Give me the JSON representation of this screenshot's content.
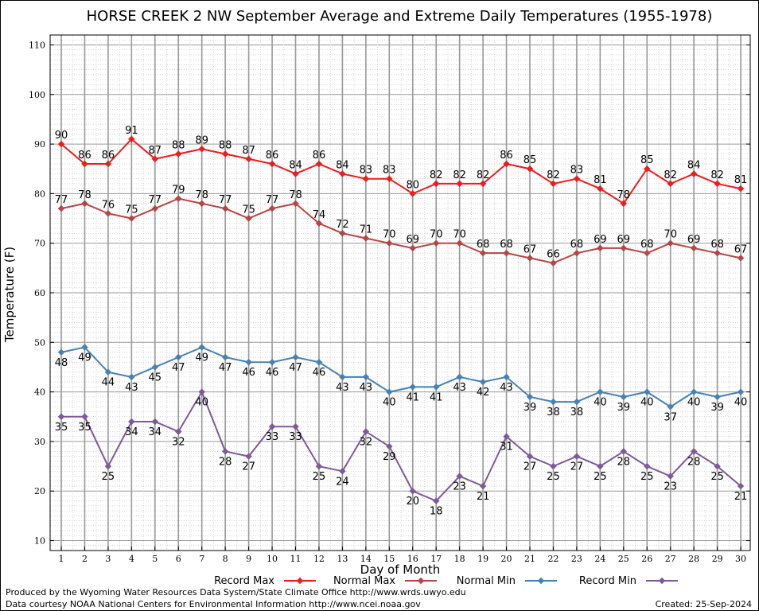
{
  "chart_data": {
    "type": "line",
    "title": "HORSE CREEK 2 NW September Average and Extreme Daily Temperatures (1955-1978)",
    "xlabel": "Day of Month",
    "ylabel": "Temperature (F)",
    "ylim": [
      8,
      112
    ],
    "yticks": [
      10,
      20,
      30,
      40,
      50,
      60,
      70,
      80,
      90,
      100,
      110
    ],
    "x": [
      1,
      2,
      3,
      4,
      5,
      6,
      7,
      8,
      9,
      10,
      11,
      12,
      13,
      14,
      15,
      16,
      17,
      18,
      19,
      20,
      21,
      22,
      23,
      24,
      25,
      26,
      27,
      28,
      29,
      30
    ],
    "grid": true,
    "legend_position": "bottom",
    "series": [
      {
        "name": "Record Max",
        "color": "#ee1c1c",
        "label_position": "above",
        "values": [
          90,
          86,
          86,
          91,
          87,
          88,
          89,
          88,
          87,
          86,
          84,
          86,
          84,
          83,
          83,
          80,
          82,
          82,
          82,
          86,
          85,
          82,
          83,
          81,
          78,
          85,
          82,
          84,
          82,
          81
        ]
      },
      {
        "name": "Normal Max",
        "color": "#b84545",
        "label_position": "above",
        "values": [
          77,
          78,
          76,
          75,
          77,
          79,
          78,
          77,
          75,
          77,
          78,
          74,
          72,
          71,
          70,
          69,
          70,
          70,
          68,
          68,
          67,
          66,
          68,
          69,
          69,
          68,
          70,
          69,
          68,
          67
        ]
      },
      {
        "name": "Normal Min",
        "color": "#4682b4",
        "label_position": "below",
        "values": [
          48,
          49,
          44,
          43,
          45,
          47,
          49,
          47,
          46,
          46,
          47,
          46,
          43,
          43,
          40,
          41,
          41,
          43,
          42,
          43,
          39,
          38,
          38,
          40,
          39,
          40,
          37,
          40,
          39,
          40
        ]
      },
      {
        "name": "Record Min",
        "color": "#7f5a9a",
        "label_position": "below",
        "values": [
          35,
          35,
          25,
          34,
          34,
          32,
          40,
          28,
          27,
          33,
          33,
          25,
          24,
          32,
          29,
          20,
          18,
          23,
          21,
          31,
          27,
          25,
          27,
          25,
          28,
          25,
          23,
          28,
          25,
          21
        ]
      }
    ]
  },
  "footer": {
    "producer": "Produced by the Wyoming Water Resources Data System/State Climate Office http://www.wrds.uwyo.edu",
    "data_source": "Data courtesy NOAA National Centers for Environmental Information http://www.ncei.noaa.gov",
    "created": "Created:  25-Sep-2024"
  }
}
